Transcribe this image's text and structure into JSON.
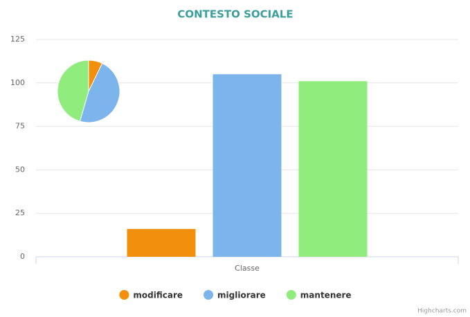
{
  "chart_data": {
    "type": "bar",
    "title": "CONTESTO SOCIALE",
    "categories": [
      "Classe"
    ],
    "series": [
      {
        "name": "modificare",
        "color": "#f28f0c",
        "values": [
          16
        ]
      },
      {
        "name": "migliorare",
        "color": "#7cb5ec",
        "values": [
          105
        ]
      },
      {
        "name": "mantenere",
        "color": "#90ed7d",
        "values": [
          101
        ]
      }
    ],
    "ylim": [
      0,
      125
    ],
    "yticks": [
      0,
      25,
      50,
      75,
      100,
      125
    ],
    "grid": true,
    "inset_pie": true,
    "legend": "bottom",
    "credits": "Highcharts.com"
  }
}
